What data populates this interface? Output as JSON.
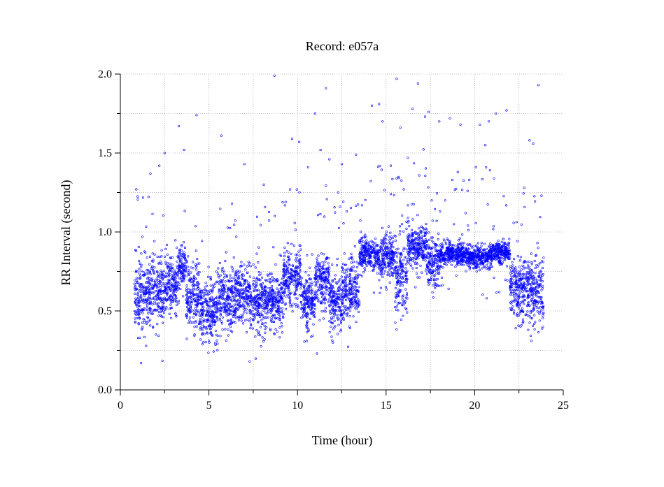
{
  "chart_data": {
    "type": "scatter",
    "title": "Record:  e057a",
    "xlabel": "Time (hour)",
    "ylabel": "RR Interval (second)",
    "xlim": [
      0,
      25
    ],
    "ylim": [
      0,
      2.0
    ],
    "x_ticks": [
      0,
      5,
      10,
      15,
      20,
      25
    ],
    "x_tick_labels": [
      "0",
      "5",
      "10",
      "15",
      "20",
      "25"
    ],
    "y_ticks": [
      0.0,
      0.5,
      1.0,
      1.5,
      2.0
    ],
    "y_tick_labels": [
      "0.0",
      "0.5",
      "1.0",
      "1.5",
      "2.0"
    ],
    "grid": true,
    "marker_color": "#0000ff",
    "data_range_hours": [
      0.8,
      23.9
    ],
    "segments": [
      {
        "start": 0.8,
        "end": 1.5,
        "center": 0.6,
        "spread": 0.14
      },
      {
        "start": 1.5,
        "end": 2.5,
        "center": 0.62,
        "spread": 0.12
      },
      {
        "start": 2.5,
        "end": 3.3,
        "center": 0.66,
        "spread": 0.12
      },
      {
        "start": 3.3,
        "end": 3.7,
        "center": 0.78,
        "spread": 0.07
      },
      {
        "start": 3.7,
        "end": 4.5,
        "center": 0.6,
        "spread": 0.12
      },
      {
        "start": 4.5,
        "end": 5.5,
        "center": 0.5,
        "spread": 0.12
      },
      {
        "start": 5.5,
        "end": 6.5,
        "center": 0.58,
        "spread": 0.12
      },
      {
        "start": 6.5,
        "end": 7.3,
        "center": 0.6,
        "spread": 0.1
      },
      {
        "start": 7.3,
        "end": 8.3,
        "center": 0.55,
        "spread": 0.11
      },
      {
        "start": 8.3,
        "end": 9.2,
        "center": 0.56,
        "spread": 0.1
      },
      {
        "start": 9.2,
        "end": 10.2,
        "center": 0.7,
        "spread": 0.1
      },
      {
        "start": 10.2,
        "end": 11.0,
        "center": 0.56,
        "spread": 0.1
      },
      {
        "start": 11.0,
        "end": 11.8,
        "center": 0.7,
        "spread": 0.1
      },
      {
        "start": 11.8,
        "end": 12.5,
        "center": 0.55,
        "spread": 0.1
      },
      {
        "start": 12.5,
        "end": 13.5,
        "center": 0.62,
        "spread": 0.12
      },
      {
        "start": 13.5,
        "end": 14.5,
        "center": 0.86,
        "spread": 0.06
      },
      {
        "start": 14.5,
        "end": 15.5,
        "center": 0.84,
        "spread": 0.08
      },
      {
        "start": 15.5,
        "end": 16.2,
        "center": 0.72,
        "spread": 0.15
      },
      {
        "start": 16.2,
        "end": 17.3,
        "center": 0.9,
        "spread": 0.08
      },
      {
        "start": 17.3,
        "end": 18.0,
        "center": 0.8,
        "spread": 0.1
      },
      {
        "start": 18.0,
        "end": 19.5,
        "center": 0.86,
        "spread": 0.04
      },
      {
        "start": 19.5,
        "end": 21.0,
        "center": 0.84,
        "spread": 0.04
      },
      {
        "start": 21.0,
        "end": 22.0,
        "center": 0.87,
        "spread": 0.04
      },
      {
        "start": 22.0,
        "end": 23.0,
        "center": 0.65,
        "spread": 0.12
      },
      {
        "start": 23.0,
        "end": 23.9,
        "center": 0.62,
        "spread": 0.13
      }
    ],
    "outliers": [
      [
        8.7,
        1.99
      ],
      [
        15.6,
        1.97
      ],
      [
        16.8,
        1.94
      ],
      [
        23.6,
        1.93
      ],
      [
        11.6,
        1.91
      ],
      [
        4.3,
        1.74
      ],
      [
        11.0,
        1.75
      ],
      [
        14.2,
        1.8
      ],
      [
        16.5,
        1.78
      ],
      [
        17.4,
        1.76
      ],
      [
        18.6,
        1.72
      ],
      [
        19.2,
        1.68
      ],
      [
        20.3,
        1.68
      ],
      [
        21.2,
        1.75
      ],
      [
        21.8,
        1.77
      ],
      [
        3.3,
        1.67
      ],
      [
        5.7,
        1.61
      ],
      [
        14.8,
        1.7
      ],
      [
        15.8,
        1.66
      ],
      [
        18.0,
        1.7
      ],
      [
        9.7,
        1.59
      ],
      [
        10.1,
        1.57
      ],
      [
        14.6,
        1.81
      ],
      [
        17.2,
        1.73
      ],
      [
        20.8,
        1.7
      ],
      [
        2.5,
        1.5
      ],
      [
        11.3,
        1.52
      ],
      [
        13.3,
        1.49
      ],
      [
        20.6,
        1.55
      ],
      [
        23.3,
        1.56
      ],
      [
        1.7,
        1.37
      ],
      [
        7.0,
        1.43
      ],
      [
        11.8,
        1.46
      ],
      [
        12.5,
        1.43
      ],
      [
        23.1,
        1.58
      ],
      [
        0.9,
        1.27
      ],
      [
        2.2,
        1.42
      ],
      [
        3.6,
        1.52
      ],
      [
        6.3,
        1.18
      ],
      [
        8.1,
        1.3
      ],
      [
        10.6,
        1.41
      ],
      [
        12.3,
        1.25
      ],
      [
        16.0,
        1.27
      ],
      [
        19.6,
        1.26
      ],
      [
        22.8,
        1.28
      ],
      [
        7.3,
        0.18
      ],
      [
        11.1,
        0.23
      ],
      [
        5.0,
        0.31
      ],
      [
        12.0,
        0.3
      ],
      [
        1.1,
        0.33
      ]
    ]
  }
}
